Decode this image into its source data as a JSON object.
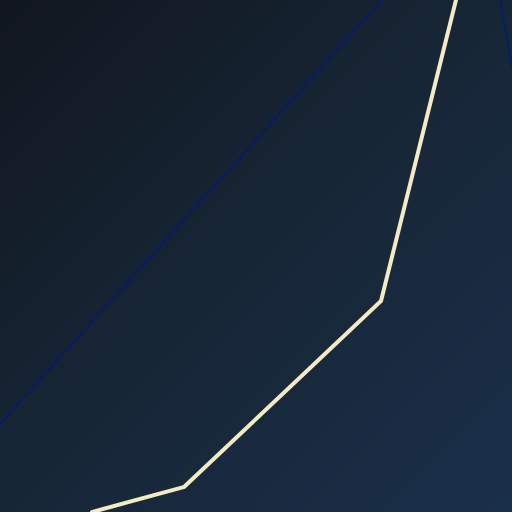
{
  "canvas": {
    "background_start": "#11161f",
    "background_mid": "#172636",
    "background_end": "#1a2f4a"
  },
  "strokes": {
    "cream_line": "#f3ecc2",
    "navy_line": "#071c66"
  }
}
